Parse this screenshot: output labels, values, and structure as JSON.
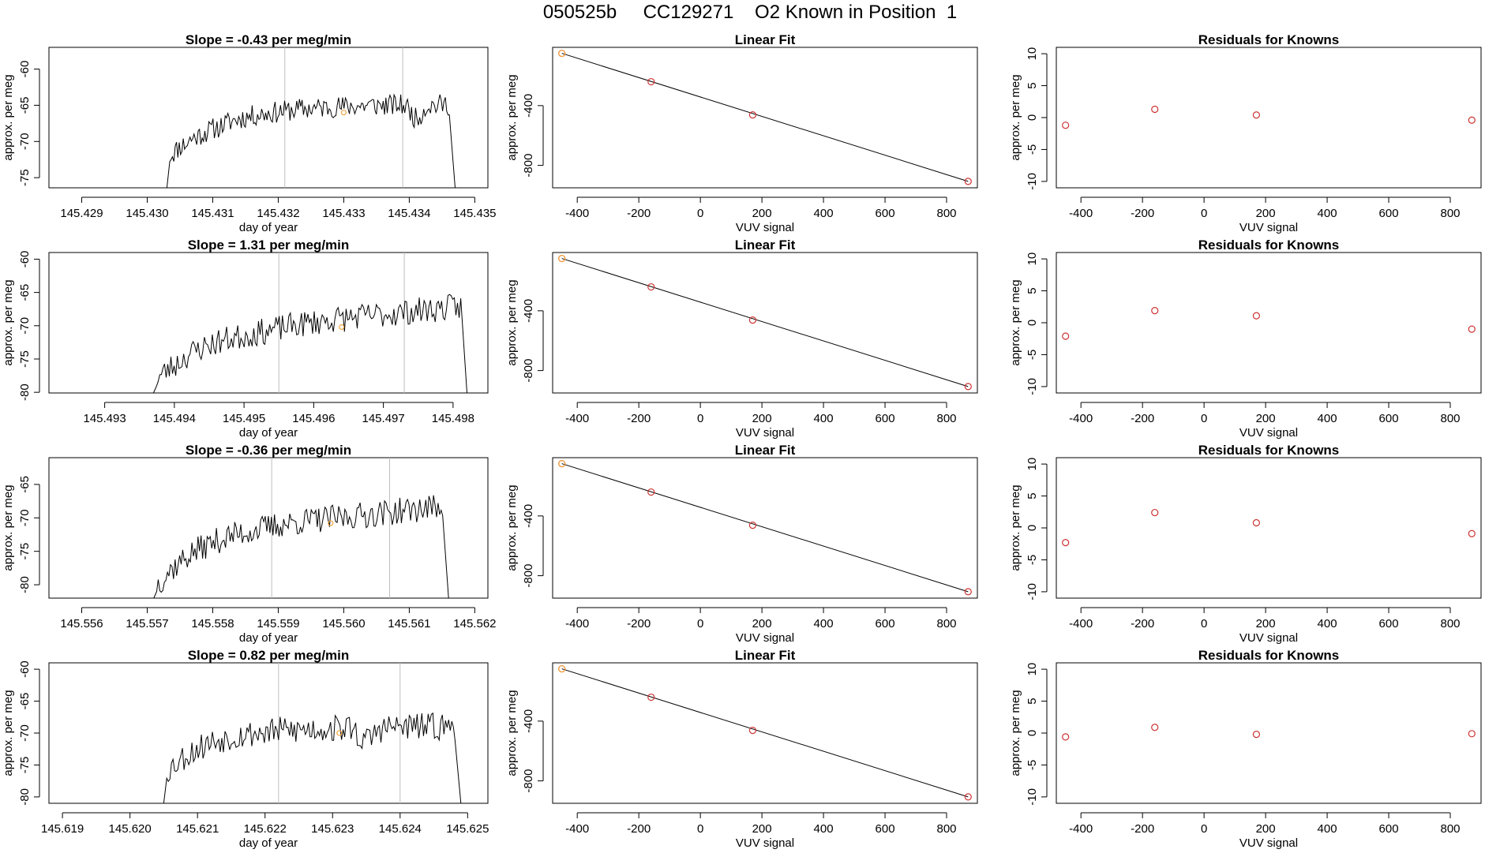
{
  "figure_title": "050525b     CC129271    O2 Known in Position  1",
  "colors": {
    "trace": "#000000",
    "points": "#cd3333",
    "highlight": "#f4a640",
    "window_lines": "#bebebe"
  },
  "chart_data": [
    {
      "row": 1,
      "type": "line",
      "title": "Slope =  -0.43  per meg/min",
      "xlabel": "day of year",
      "ylabel": "approx. per meg",
      "xlim": [
        145.4285,
        145.4352
      ],
      "ylim": [
        -76.4,
        -57.0
      ],
      "xticks": [
        "145.429",
        "145.430",
        "145.431",
        "145.432",
        "145.433",
        "145.434",
        "145.435"
      ],
      "yticks": [
        "-75",
        "-70",
        "-65",
        "-60"
      ],
      "window_lines": [
        145.4321,
        145.4339
      ],
      "trace": {
        "x_start": 145.4303,
        "x_end": 145.4347,
        "start_y": -76.4,
        "values": [
          -72.0,
          -71.3,
          -70.6,
          -70.3,
          -69.6,
          -69.3,
          -68.9,
          -68.6,
          -68.2,
          -68.0,
          -67.6,
          -67.3,
          -67.0,
          -66.8,
          -66.6,
          -66.5,
          -66.3,
          -66.2,
          -66.1,
          -66.0,
          -65.9,
          -65.8,
          -65.7,
          -65.6,
          -65.5,
          -65.5,
          -65.4,
          -65.4,
          -65.3,
          -65.3,
          -65.2,
          -65.2,
          -65.2,
          -65.1,
          -65.1,
          -65.1,
          -65.0,
          -65.0,
          -65.0,
          -65.0,
          -65.0,
          -65.0,
          -65.0,
          -65.0,
          -66.0,
          -67.0,
          -66.0,
          -65.0,
          -65.0,
          -65.0,
          -64.9,
          -64.9
        ],
        "noise": 1.5,
        "seed": 11
      },
      "highlight": {
        "x": 145.433,
        "y": -66.0
      }
    },
    {
      "row": 1,
      "type": "scatter",
      "title": "Linear Fit",
      "xlabel": "VUV signal",
      "ylabel": "approx. per meg",
      "xlim": [
        -480,
        900
      ],
      "ylim": [
        -950,
        -10
      ],
      "xticks": [
        "-400",
        "-200",
        "0",
        "200",
        "400",
        "600",
        "800"
      ],
      "yticks": [
        "-800",
        "-400"
      ],
      "points": [
        [
          -450,
          -50
        ],
        [
          -160,
          -240
        ],
        [
          170,
          -462
        ],
        [
          870,
          -907
        ]
      ],
      "fit_line": [
        [
          -450,
          -50
        ],
        [
          870,
          -907
        ]
      ],
      "highlight": {
        "x": -450,
        "y": -50
      }
    },
    {
      "row": 1,
      "type": "scatter",
      "title": "Residuals for Knowns",
      "xlabel": "VUV signal",
      "ylabel": "approx. per meg",
      "xlim": [
        -480,
        900
      ],
      "ylim": [
        -11,
        11
      ],
      "xticks": [
        "-400",
        "-200",
        "0",
        "200",
        "400",
        "600",
        "800"
      ],
      "yticks": [
        "-10",
        "-5",
        "0",
        "5",
        "10"
      ],
      "points": [
        [
          -450,
          -1.2
        ],
        [
          -160,
          1.3
        ],
        [
          170,
          0.4
        ],
        [
          870,
          -0.4
        ]
      ]
    },
    {
      "row": 2,
      "type": "line",
      "title": "Slope =  1.31  per meg/min",
      "xlabel": "day of year",
      "ylabel": "approx. per meg",
      "xlim": [
        145.4922,
        145.4985
      ],
      "ylim": [
        -80.1,
        -59.0
      ],
      "xticks": [
        "145.493",
        "145.494",
        "145.495",
        "145.496",
        "145.497",
        "145.498"
      ],
      "yticks": [
        "-80",
        "-75",
        "-70",
        "-65",
        "-60"
      ],
      "window_lines": [
        145.4955,
        145.4973
      ],
      "trace": {
        "x_start": 145.4937,
        "x_end": 145.4982,
        "start_y": -80.1,
        "values": [
          -78.0,
          -77.2,
          -76.4,
          -75.8,
          -75.0,
          -74.3,
          -73.8,
          -73.3,
          -72.9,
          -72.6,
          -72.3,
          -72.0,
          -71.8,
          -71.6,
          -71.4,
          -71.2,
          -71.0,
          -70.8,
          -70.6,
          -70.4,
          -70.2,
          -70.0,
          -69.8,
          -69.7,
          -69.5,
          -69.4,
          -69.2,
          -69.1,
          -69.0,
          -68.9,
          -68.8,
          -68.7,
          -68.6,
          -68.5,
          -68.4,
          -68.3,
          -68.2,
          -68.1,
          -68.0,
          -67.9,
          -67.8,
          -67.7,
          -67.6,
          -67.5,
          -67.4,
          -67.3,
          -67.2,
          -67.1
        ],
        "noise": 2.0,
        "seed": 23
      },
      "highlight": {
        "x": 145.4964,
        "y": -70.2
      }
    },
    {
      "row": 2,
      "type": "scatter",
      "title": "Linear Fit",
      "xlabel": "VUV signal",
      "ylabel": "approx. per meg",
      "xlim": [
        -480,
        900
      ],
      "ylim": [
        -950,
        -10
      ],
      "xticks": [
        "-400",
        "-200",
        "0",
        "200",
        "400",
        "600",
        "800"
      ],
      "yticks": [
        "-800",
        "-400"
      ],
      "points": [
        [
          -450,
          -50
        ],
        [
          -160,
          -240
        ],
        [
          170,
          -462
        ],
        [
          870,
          -907
        ]
      ],
      "fit_line": [
        [
          -450,
          -50
        ],
        [
          870,
          -907
        ]
      ],
      "highlight": {
        "x": -450,
        "y": -50
      }
    },
    {
      "row": 2,
      "type": "scatter",
      "title": "Residuals for Knowns",
      "xlabel": "VUV signal",
      "ylabel": "approx. per meg",
      "xlim": [
        -480,
        900
      ],
      "ylim": [
        -11,
        11
      ],
      "xticks": [
        "-400",
        "-200",
        "0",
        "200",
        "400",
        "600",
        "800"
      ],
      "yticks": [
        "-10",
        "-5",
        "0",
        "5",
        "10"
      ],
      "points": [
        [
          -450,
          -2.1
        ],
        [
          -160,
          1.9
        ],
        [
          170,
          1.1
        ],
        [
          870,
          -1.0
        ]
      ]
    },
    {
      "row": 3,
      "type": "line",
      "title": "Slope =  -0.36  per meg/min",
      "xlabel": "day of year",
      "ylabel": "approx. per meg",
      "xlim": [
        145.5555,
        145.5622
      ],
      "ylim": [
        -82.0,
        -61.0
      ],
      "xticks": [
        "145.556",
        "145.557",
        "145.558",
        "145.559",
        "145.560",
        "145.561",
        "145.562"
      ],
      "yticks": [
        "-80",
        "-75",
        "-70",
        "-65"
      ],
      "window_lines": [
        145.5589,
        145.5607
      ],
      "trace": {
        "x_start": 145.5571,
        "x_end": 145.5616,
        "start_y": -82.0,
        "values": [
          -80.0,
          -79.0,
          -78.0,
          -77.2,
          -76.4,
          -75.7,
          -75.1,
          -74.6,
          -74.1,
          -73.7,
          -73.3,
          -73.0,
          -72.7,
          -72.4,
          -72.2,
          -72.0,
          -71.8,
          -71.6,
          -71.4,
          -71.2,
          -71.0,
          -70.9,
          -70.7,
          -70.6,
          -70.5,
          -70.4,
          -70.3,
          -70.2,
          -70.1,
          -70.0,
          -69.9,
          -69.8,
          -69.7,
          -69.6,
          -69.5,
          -69.4,
          -69.3,
          -69.2,
          -69.1,
          -69.0,
          -68.9,
          -68.8,
          -68.7,
          -68.6,
          -68.5,
          -68.4,
          -68.3
        ],
        "noise": 2.0,
        "seed": 37
      },
      "highlight": {
        "x": 145.5598,
        "y": -70.8
      }
    },
    {
      "row": 3,
      "type": "scatter",
      "title": "Linear Fit",
      "xlabel": "VUV signal",
      "ylabel": "approx. per meg",
      "xlim": [
        -480,
        900
      ],
      "ylim": [
        -950,
        -10
      ],
      "xticks": [
        "-400",
        "-200",
        "0",
        "200",
        "400",
        "600",
        "800"
      ],
      "yticks": [
        "-800",
        "-400"
      ],
      "points": [
        [
          -450,
          -50
        ],
        [
          -160,
          -240
        ],
        [
          170,
          -462
        ],
        [
          870,
          -907
        ]
      ],
      "fit_line": [
        [
          -450,
          -50
        ],
        [
          870,
          -907
        ]
      ],
      "highlight": {
        "x": -450,
        "y": -50
      }
    },
    {
      "row": 3,
      "type": "scatter",
      "title": "Residuals for Knowns",
      "xlabel": "VUV signal",
      "ylabel": "approx. per meg",
      "xlim": [
        -480,
        900
      ],
      "ylim": [
        -11,
        11
      ],
      "xticks": [
        "-400",
        "-200",
        "0",
        "200",
        "400",
        "600",
        "800"
      ],
      "yticks": [
        "-10",
        "-5",
        "0",
        "5",
        "10"
      ],
      "points": [
        [
          -450,
          -2.3
        ],
        [
          -160,
          2.4
        ],
        [
          170,
          0.8
        ],
        [
          870,
          -0.9
        ]
      ]
    },
    {
      "row": 4,
      "type": "line",
      "title": "Slope =  0.82  per meg/min",
      "xlabel": "day of year",
      "ylabel": "approx. per meg",
      "xlim": [
        145.6188,
        145.6253
      ],
      "ylim": [
        -81.0,
        -59.0
      ],
      "xticks": [
        "145.619",
        "145.620",
        "145.621",
        "145.622",
        "145.623",
        "145.624",
        "145.625"
      ],
      "yticks": [
        "-80",
        "-75",
        "-70",
        "-65",
        "-60"
      ],
      "window_lines": [
        145.6222,
        145.624
      ],
      "trace": {
        "x_start": 145.6205,
        "x_end": 145.6249,
        "start_y": -81.0,
        "values": [
          -76.0,
          -75.0,
          -74.2,
          -73.5,
          -72.9,
          -72.3,
          -71.8,
          -71.4,
          -71.1,
          -70.8,
          -70.6,
          -70.4,
          -70.2,
          -70.1,
          -70.0,
          -69.9,
          -69.8,
          -69.7,
          -69.6,
          -69.6,
          -69.5,
          -69.5,
          -69.4,
          -69.4,
          -69.3,
          -69.3,
          -69.3,
          -69.2,
          -69.2,
          -69.2,
          -70.5,
          -71.5,
          -70.5,
          -69.5,
          -69.2,
          -69.1,
          -69.1,
          -69.0,
          -69.0,
          -69.0,
          -69.0,
          -69.0,
          -69.0,
          -69.0,
          -69.0,
          -69.0
        ],
        "noise": 2.2,
        "seed": 53
      },
      "highlight": {
        "x": 145.6231,
        "y": -70.0
      }
    },
    {
      "row": 4,
      "type": "scatter",
      "title": "Linear Fit",
      "xlabel": "VUV signal",
      "ylabel": "approx. per meg",
      "xlim": [
        -480,
        900
      ],
      "ylim": [
        -950,
        -10
      ],
      "xticks": [
        "-400",
        "-200",
        "0",
        "200",
        "400",
        "600",
        "800"
      ],
      "yticks": [
        "-800",
        "-400"
      ],
      "points": [
        [
          -450,
          -50
        ],
        [
          -160,
          -240
        ],
        [
          170,
          -462
        ],
        [
          870,
          -907
        ]
      ],
      "fit_line": [
        [
          -450,
          -50
        ],
        [
          870,
          -907
        ]
      ],
      "highlight": {
        "x": -450,
        "y": -50
      }
    },
    {
      "row": 4,
      "type": "scatter",
      "title": "Residuals for Knowns",
      "xlabel": "VUV signal",
      "ylabel": "approx. per meg",
      "xlim": [
        -480,
        900
      ],
      "ylim": [
        -11,
        11
      ],
      "xticks": [
        "-400",
        "-200",
        "0",
        "200",
        "400",
        "600",
        "800"
      ],
      "yticks": [
        "-10",
        "-5",
        "0",
        "5",
        "10"
      ],
      "points": [
        [
          -450,
          -0.6
        ],
        [
          -160,
          0.9
        ],
        [
          170,
          -0.2
        ],
        [
          870,
          -0.1
        ]
      ]
    }
  ]
}
